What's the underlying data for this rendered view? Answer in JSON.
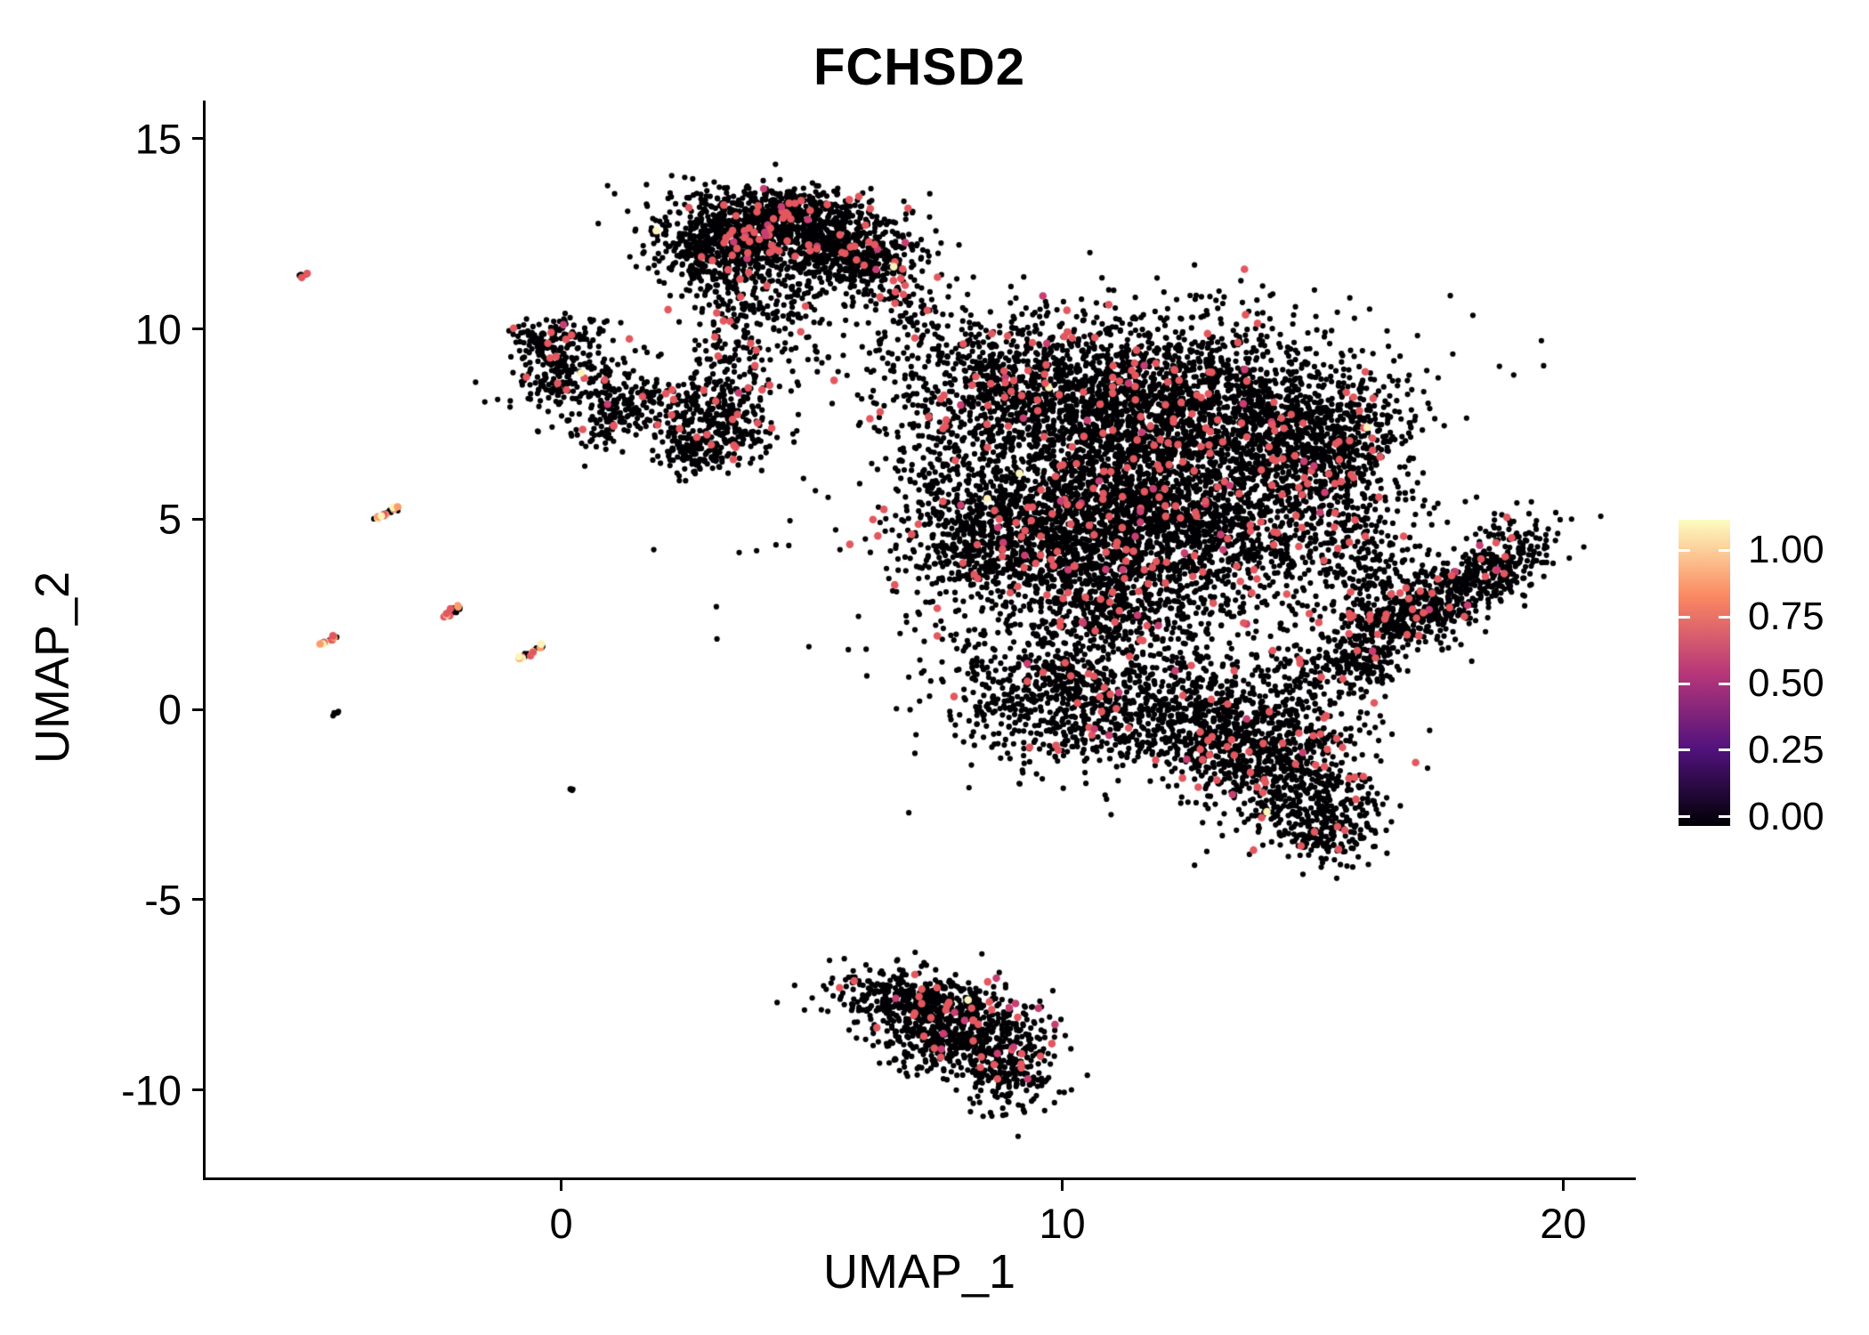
{
  "chart_data": {
    "type": "scatter",
    "title": "FCHSD2",
    "xlabel": "UMAP_1",
    "ylabel": "UMAP_2",
    "xlim": [
      -7.1,
      21.45
    ],
    "ylim": [
      -12.3,
      16.0
    ],
    "x_ticks": [
      0,
      10,
      20
    ],
    "y_ticks": [
      -10,
      -5,
      0,
      5,
      10,
      15
    ],
    "grid": false,
    "legend_position": "right",
    "point_radius_px": 3.1,
    "colored_point_radius_px": 4.3,
    "palette": {
      "black": "#000004",
      "red": "#e4575f",
      "pink": "#c83e73",
      "orange": "#fb9d6a",
      "yellow": "#fcf4b8"
    },
    "mixes": {
      "default": {
        "black": 0.957,
        "red": 0.037,
        "pink": 0.0052,
        "yellow": 0.0008
      },
      "sparse": {
        "black": 0.96,
        "red": 0.04
      },
      "dark": {
        "black": 1.0
      },
      "dot_red": {
        "black": 0.7,
        "red": 0.3
      },
      "streak_bright": {
        "black": 0.38,
        "red": 0.17,
        "orange": 0.17,
        "yellow": 0.28
      },
      "streak_mid": {
        "black": 0.72,
        "red": 0.18,
        "orange": 0.06,
        "yellow": 0.04
      }
    },
    "clusters": [
      {
        "name": "top-main",
        "cx": 4.4,
        "cy": 12.5,
        "sx": 1.15,
        "sy": 0.55,
        "a": -8,
        "n": 1000,
        "mix": "default"
      },
      {
        "name": "top-left-lobe",
        "cx": 3.1,
        "cy": 11.9,
        "sx": 0.6,
        "sy": 0.5,
        "a": 20,
        "n": 300,
        "mix": "default"
      },
      {
        "name": "top-right-lobe",
        "cx": 5.7,
        "cy": 11.9,
        "sx": 0.6,
        "sy": 0.55,
        "a": 0,
        "n": 280,
        "mix": "default"
      },
      {
        "name": "top-cap",
        "cx": 4.6,
        "cy": 13.2,
        "sx": 0.9,
        "sy": 0.25,
        "a": 0,
        "n": 150,
        "mix": "default"
      },
      {
        "name": "top-under",
        "cx": 4.0,
        "cy": 10.6,
        "sx": 0.7,
        "sy": 0.45,
        "a": 0,
        "n": 120,
        "mix": "sparse"
      },
      {
        "name": "top-trail",
        "cx": 3.4,
        "cy": 9.4,
        "sx": 0.4,
        "sy": 0.55,
        "a": 0,
        "n": 70,
        "mix": "sparse"
      },
      {
        "name": "top-right-edge",
        "cx": 6.6,
        "cy": 11.0,
        "sx": 0.5,
        "sy": 0.8,
        "a": 0,
        "n": 80,
        "mix": "sparse"
      },
      {
        "name": "bridge-right",
        "cx": 7.3,
        "cy": 10.0,
        "sx": 0.5,
        "sy": 0.6,
        "a": 0,
        "n": 40,
        "mix": "sparse"
      },
      {
        "name": "left-mid",
        "cx": 0.2,
        "cy": 8.8,
        "sx": 0.65,
        "sy": 0.7,
        "a": 0,
        "n": 260,
        "mix": "default"
      },
      {
        "name": "left-mid-top",
        "cx": -0.3,
        "cy": 9.6,
        "sx": 0.35,
        "sy": 0.3,
        "a": 0,
        "n": 90,
        "mix": "default"
      },
      {
        "name": "left-mid-tail",
        "cx": 1.1,
        "cy": 7.7,
        "sx": 0.45,
        "sy": 0.4,
        "a": 30,
        "n": 110,
        "mix": "default"
      },
      {
        "name": "mid",
        "cx": 3.1,
        "cy": 7.6,
        "sx": 0.55,
        "sy": 0.7,
        "a": 10,
        "n": 330,
        "mix": "default"
      },
      {
        "name": "mid-lower",
        "cx": 2.6,
        "cy": 6.8,
        "sx": 0.35,
        "sy": 0.3,
        "a": 0,
        "n": 90,
        "mix": "default"
      },
      {
        "name": "mid-bridge",
        "cx": 5.2,
        "cy": 9.6,
        "sx": 0.9,
        "sy": 0.7,
        "a": 0,
        "n": 50,
        "mix": "sparse"
      },
      {
        "name": "b-c-bridge",
        "cx": 1.7,
        "cy": 8.3,
        "sx": 0.5,
        "sy": 0.4,
        "a": 0,
        "n": 60,
        "mix": "sparse"
      },
      {
        "name": "main-ul",
        "cx": 9.0,
        "cy": 8.4,
        "sx": 1.2,
        "sy": 1.0,
        "a": 0,
        "n": 800,
        "mix": "default"
      },
      {
        "name": "main-core",
        "cx": 12.1,
        "cy": 7.9,
        "sx": 1.6,
        "sy": 1.2,
        "a": 0,
        "n": 1800,
        "mix": "default"
      },
      {
        "name": "main-right",
        "cx": 14.7,
        "cy": 7.4,
        "sx": 0.9,
        "sy": 0.9,
        "a": 0,
        "n": 550,
        "mix": "default"
      },
      {
        "name": "main-cl",
        "cx": 10.4,
        "cy": 5.1,
        "sx": 1.4,
        "sy": 1.1,
        "a": 0,
        "n": 1300,
        "mix": "default"
      },
      {
        "name": "main-cr",
        "cx": 13.0,
        "cy": 4.8,
        "sx": 1.2,
        "sy": 1.0,
        "a": 0,
        "n": 800,
        "mix": "default"
      },
      {
        "name": "main-right-arm",
        "cx": 15.6,
        "cy": 6.2,
        "sx": 0.65,
        "sy": 1.2,
        "a": -20,
        "n": 380,
        "mix": "default"
      },
      {
        "name": "main-left-edge",
        "cx": 8.3,
        "cy": 4.3,
        "sx": 0.8,
        "sy": 0.9,
        "a": 0,
        "n": 380,
        "mix": "default"
      },
      {
        "name": "main-left-sparse",
        "cx": 7.6,
        "cy": 6.5,
        "sx": 0.6,
        "sy": 0.8,
        "a": 0,
        "n": 100,
        "mix": "sparse"
      },
      {
        "name": "main-low-mid",
        "cx": 11.0,
        "cy": 2.9,
        "sx": 1.0,
        "sy": 0.8,
        "a": 0,
        "n": 500,
        "mix": "default"
      },
      {
        "name": "lower-left-lobe",
        "cx": 9.7,
        "cy": 0.4,
        "sx": 1.0,
        "sy": 0.9,
        "a": 0,
        "n": 550,
        "mix": "default"
      },
      {
        "name": "lower-mid-lobe",
        "cx": 11.9,
        "cy": 0.1,
        "sx": 1.0,
        "sy": 0.8,
        "a": 0,
        "n": 500,
        "mix": "default"
      },
      {
        "name": "lower-right-lobe",
        "cx": 14.3,
        "cy": -1.4,
        "sx": 0.9,
        "sy": 0.9,
        "a": 0,
        "n": 600,
        "mix": "default"
      },
      {
        "name": "lower-right-tip",
        "cx": 15.2,
        "cy": -2.9,
        "sx": 0.55,
        "sy": 0.6,
        "a": 40,
        "n": 260,
        "mix": "default"
      },
      {
        "name": "arm-bridge",
        "cx": 16.2,
        "cy": 3.4,
        "sx": 0.5,
        "sy": 0.9,
        "a": 0,
        "n": 200,
        "mix": "sparse"
      },
      {
        "name": "main-fill",
        "cx": 11.5,
        "cy": 5.5,
        "sx": 2.9,
        "sy": 2.7,
        "a": 0,
        "n": 700,
        "mix": "sparse"
      },
      {
        "name": "lower-connector",
        "cx": 13.2,
        "cy": -0.5,
        "sx": 0.7,
        "sy": 0.6,
        "a": 0,
        "n": 200,
        "mix": "default"
      },
      {
        "name": "lower-gap",
        "cx": 14.8,
        "cy": 0.8,
        "sx": 0.8,
        "sy": 0.8,
        "a": 0,
        "n": 150,
        "mix": "sparse"
      },
      {
        "name": "right-band",
        "cx": 17.3,
        "cy": 2.7,
        "sx": 1.25,
        "sy": 0.42,
        "a": 38,
        "n": 600,
        "mix": "default"
      },
      {
        "name": "right-band-tip",
        "cx": 18.8,
        "cy": 4.0,
        "sx": 0.45,
        "sy": 0.5,
        "a": 0,
        "n": 150,
        "mix": "default"
      },
      {
        "name": "right-band-base",
        "cx": 16.0,
        "cy": 1.2,
        "sx": 0.4,
        "sy": 0.4,
        "a": 0,
        "n": 90,
        "mix": "default"
      },
      {
        "name": "bottom-left",
        "cx": 6.8,
        "cy": -7.6,
        "sx": 0.75,
        "sy": 0.4,
        "a": -5,
        "n": 320,
        "mix": "default"
      },
      {
        "name": "bottom-mid",
        "cx": 8.1,
        "cy": -8.2,
        "sx": 0.85,
        "sy": 0.55,
        "a": -20,
        "n": 380,
        "mix": "default"
      },
      {
        "name": "bottom-tip",
        "cx": 8.8,
        "cy": -9.4,
        "sx": 0.5,
        "sy": 0.6,
        "a": 0,
        "n": 260,
        "mix": "default"
      },
      {
        "name": "bottom-inner",
        "cx": 7.3,
        "cy": -8.8,
        "sx": 0.5,
        "sy": 0.4,
        "a": 0,
        "n": 160,
        "mix": "default"
      },
      {
        "name": "streak-far-left",
        "cx": -5.15,
        "cy": 11.4,
        "sx": 0.1,
        "sy": 0.03,
        "a": 35,
        "n": 7,
        "mix": "dot_red",
        "shape": "line"
      },
      {
        "name": "streak-1",
        "cx": -3.5,
        "cy": 5.15,
        "sx": 0.3,
        "sy": 0.035,
        "a": 38,
        "n": 26,
        "mix": "streak_bright",
        "shape": "line"
      },
      {
        "name": "streak-2",
        "cx": -2.2,
        "cy": 2.55,
        "sx": 0.24,
        "sy": 0.035,
        "a": 36,
        "n": 18,
        "mix": "streak_mid",
        "shape": "line"
      },
      {
        "name": "streak-3",
        "cx": -4.65,
        "cy": 1.8,
        "sx": 0.22,
        "sy": 0.035,
        "a": 36,
        "n": 16,
        "mix": "streak_bright",
        "shape": "line"
      },
      {
        "name": "streak-4",
        "cx": -0.6,
        "cy": 1.5,
        "sx": 0.3,
        "sy": 0.035,
        "a": 33,
        "n": 24,
        "mix": "streak_bright",
        "shape": "line"
      },
      {
        "name": "dot-left-low",
        "cx": -4.5,
        "cy": -0.1,
        "sx": 0.1,
        "sy": 0.03,
        "a": 30,
        "n": 6,
        "mix": "dark",
        "shape": "line"
      },
      {
        "name": "dot-mid-low",
        "cx": 0.2,
        "cy": -2.1,
        "sx": 0.05,
        "sy": 0.03,
        "a": 0,
        "n": 4,
        "mix": "dark",
        "shape": "line"
      }
    ],
    "colorbar": {
      "labels": [
        "1.00",
        "0.75",
        "0.50",
        "0.25",
        "0.00"
      ],
      "values": [
        1.0,
        0.75,
        0.5,
        0.25,
        0.0
      ],
      "gradient": [
        "#000004",
        "#51127c",
        "#b73779",
        "#fb8861",
        "#fcfdbf"
      ]
    }
  }
}
